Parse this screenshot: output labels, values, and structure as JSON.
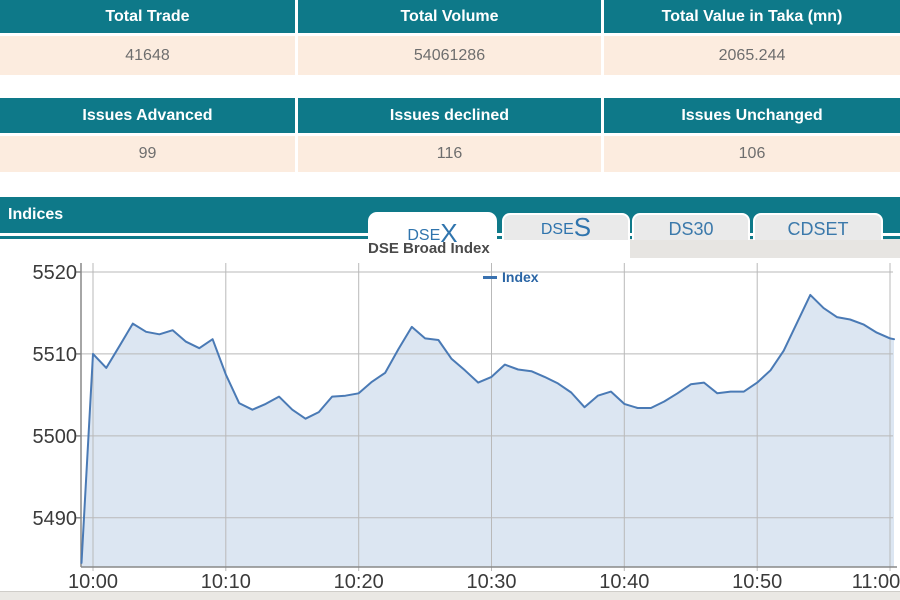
{
  "summary_table": {
    "headers": [
      "Total Trade",
      "Total Volume",
      "Total Value in Taka (mn)"
    ],
    "values": [
      "41648",
      "54061286",
      "2065.244"
    ]
  },
  "issues_table": {
    "headers": [
      "Issues Advanced",
      "Issues declined",
      "Issues Unchanged"
    ],
    "values": [
      "99",
      "116",
      "106"
    ]
  },
  "indices_section": {
    "title": "Indices",
    "tabs": [
      {
        "prefix": "DSE",
        "suffix": "X",
        "active": true
      },
      {
        "prefix": "DSE",
        "suffix": "S",
        "active": false
      },
      {
        "label": "DS30",
        "active": false
      },
      {
        "label": "CDSET",
        "active": false
      }
    ]
  },
  "colors": {
    "teal_header": "#0e7989",
    "beige_row": "#fcecdf",
    "tab_text_blue": "#2f74ad",
    "line_blue": "#4a7ab5",
    "area_fill": "#dce6f2",
    "legend_blue": "#2a65a5"
  },
  "chart_data": {
    "type": "area",
    "title": "DSE Broad Index",
    "legend": [
      {
        "label": "Index",
        "color": "#3a72b0"
      }
    ],
    "legend_position": "top",
    "grid": true,
    "xlabel": "",
    "ylabel": "",
    "x_range": [
      "10:00",
      "11:00"
    ],
    "ylim": [
      5484,
      5520
    ],
    "y_ticks": [
      {
        "v": 5520,
        "label": "5520"
      },
      {
        "v": 5510,
        "label": "5510"
      },
      {
        "v": 5500,
        "label": "5500"
      },
      {
        "v": 5490,
        "label": "5490"
      }
    ],
    "x_ticks": [
      {
        "t": 0,
        "label": "10:00"
      },
      {
        "t": 10,
        "label": "10:10"
      },
      {
        "t": 20,
        "label": "10:20"
      },
      {
        "t": 30,
        "label": "10:30"
      },
      {
        "t": 40,
        "label": "10:40"
      },
      {
        "t": 50,
        "label": "10:50"
      },
      {
        "t": 60,
        "label": "11:00"
      }
    ],
    "series": [
      {
        "name": "Index",
        "color": "#4a7ab5",
        "fill": "#dce6f2",
        "points": [
          [
            -1,
            5484.5
          ],
          [
            0,
            5510.0
          ],
          [
            1,
            5508.3
          ],
          [
            2,
            5511.0
          ],
          [
            3,
            5513.7
          ],
          [
            4,
            5512.7
          ],
          [
            5,
            5512.4
          ],
          [
            6,
            5512.9
          ],
          [
            7,
            5511.5
          ],
          [
            8,
            5510.7
          ],
          [
            9,
            5511.8
          ],
          [
            10,
            5507.5
          ],
          [
            11,
            5504.0
          ],
          [
            12,
            5503.2
          ],
          [
            13,
            5503.9
          ],
          [
            14,
            5504.8
          ],
          [
            15,
            5503.2
          ],
          [
            16,
            5502.1
          ],
          [
            17,
            5502.9
          ],
          [
            18,
            5504.8
          ],
          [
            19,
            5504.9
          ],
          [
            20,
            5505.2
          ],
          [
            21,
            5506.6
          ],
          [
            22,
            5507.7
          ],
          [
            23,
            5510.6
          ],
          [
            24,
            5513.3
          ],
          [
            25,
            5511.9
          ],
          [
            26,
            5511.7
          ],
          [
            27,
            5509.4
          ],
          [
            28,
            5508.0
          ],
          [
            29,
            5506.5
          ],
          [
            30,
            5507.2
          ],
          [
            31,
            5508.7
          ],
          [
            32,
            5508.1
          ],
          [
            33,
            5507.9
          ],
          [
            34,
            5507.2
          ],
          [
            35,
            5506.4
          ],
          [
            36,
            5505.3
          ],
          [
            37,
            5503.5
          ],
          [
            38,
            5504.9
          ],
          [
            39,
            5505.4
          ],
          [
            40,
            5503.9
          ],
          [
            41,
            5503.4
          ],
          [
            42,
            5503.4
          ],
          [
            43,
            5504.2
          ],
          [
            44,
            5505.2
          ],
          [
            45,
            5506.3
          ],
          [
            46,
            5506.5
          ],
          [
            47,
            5505.2
          ],
          [
            48,
            5505.4
          ],
          [
            49,
            5505.4
          ],
          [
            50,
            5506.5
          ],
          [
            51,
            5508.0
          ],
          [
            52,
            5510.4
          ],
          [
            53,
            5513.8
          ],
          [
            54,
            5517.2
          ],
          [
            55,
            5515.6
          ],
          [
            56,
            5514.5
          ],
          [
            57,
            5514.2
          ],
          [
            58,
            5513.6
          ],
          [
            59,
            5512.6
          ],
          [
            60,
            5511.9
          ],
          [
            60.3,
            5511.8
          ]
        ]
      }
    ]
  }
}
